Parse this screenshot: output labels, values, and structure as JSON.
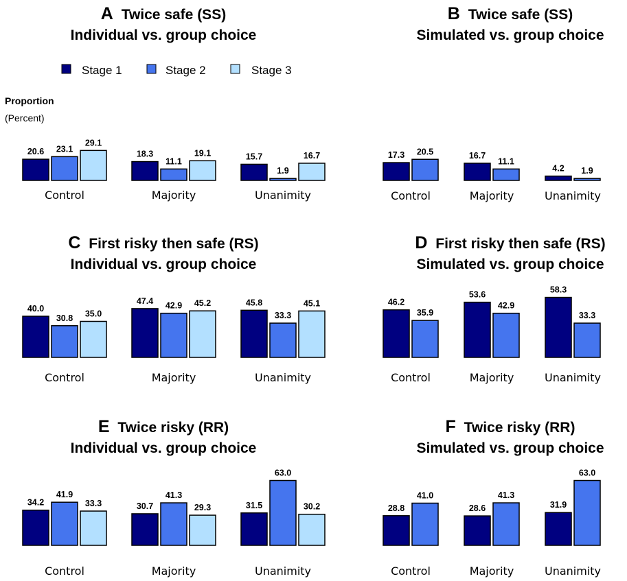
{
  "y_axis": {
    "label": "Proportion",
    "sublabel": "(Percent)"
  },
  "legend": [
    {
      "name": "Stage 1",
      "color": "#000080"
    },
    {
      "name": "Stage 2",
      "color": "#4575EE"
    },
    {
      "name": "Stage 3",
      "color": "#B3E0FF"
    }
  ],
  "chart_data": [
    {
      "type": "bar",
      "panel": "A",
      "title": "Twice safe (SS)",
      "subtitle": "Individual vs. group choice",
      "categories": [
        "Control",
        "Majority",
        "Unanimity"
      ],
      "series": [
        {
          "name": "Stage 1",
          "values": [
            20.6,
            18.3,
            15.7
          ]
        },
        {
          "name": "Stage 2",
          "values": [
            23.1,
            11.1,
            1.9
          ]
        },
        {
          "name": "Stage 3",
          "values": [
            29.1,
            19.1,
            16.7
          ]
        }
      ],
      "legend": "top",
      "grid": false
    },
    {
      "type": "bar",
      "panel": "B",
      "title": "Twice safe (SS)",
      "subtitle": "Simulated vs. group choice",
      "categories": [
        "Control",
        "Majority",
        "Unanimity"
      ],
      "series": [
        {
          "name": "Stage 1",
          "values": [
            17.3,
            16.7,
            4.2
          ]
        },
        {
          "name": "Stage 2",
          "values": [
            20.5,
            11.1,
            1.9
          ]
        }
      ],
      "grid": false
    },
    {
      "type": "bar",
      "panel": "C",
      "title": "First risky then safe (RS)",
      "subtitle": "Individual vs. group choice",
      "categories": [
        "Control",
        "Majority",
        "Unanimity"
      ],
      "series": [
        {
          "name": "Stage 1",
          "values": [
            40.0,
            47.4,
            45.8
          ]
        },
        {
          "name": "Stage 2",
          "values": [
            30.8,
            42.9,
            33.3
          ]
        },
        {
          "name": "Stage 3",
          "values": [
            35.0,
            45.2,
            45.1
          ]
        }
      ],
      "grid": false
    },
    {
      "type": "bar",
      "panel": "D",
      "title": "First risky then safe (RS)",
      "subtitle": "Simulated vs. group choice",
      "categories": [
        "Control",
        "Majority",
        "Unanimity"
      ],
      "series": [
        {
          "name": "Stage 1",
          "values": [
            46.2,
            53.6,
            58.3
          ]
        },
        {
          "name": "Stage 2",
          "values": [
            35.9,
            42.9,
            33.3
          ]
        }
      ],
      "grid": false
    },
    {
      "type": "bar",
      "panel": "E",
      "title": "Twice risky (RR)",
      "subtitle": "Individual vs. group choice",
      "categories": [
        "Control",
        "Majority",
        "Unanimity"
      ],
      "series": [
        {
          "name": "Stage 1",
          "values": [
            34.2,
            30.7,
            31.5
          ]
        },
        {
          "name": "Stage 2",
          "values": [
            41.9,
            41.3,
            63.0
          ]
        },
        {
          "name": "Stage 3",
          "values": [
            33.3,
            29.3,
            30.2
          ]
        }
      ],
      "grid": false
    },
    {
      "type": "bar",
      "panel": "F",
      "title": "Twice risky (RR)",
      "subtitle": "Simulated vs. group choice",
      "categories": [
        "Control",
        "Majority",
        "Unanimity"
      ],
      "series": [
        {
          "name": "Stage 1",
          "values": [
            28.8,
            28.6,
            31.9
          ]
        },
        {
          "name": "Stage 2",
          "values": [
            41.0,
            41.3,
            63.0
          ]
        }
      ],
      "grid": false
    }
  ]
}
